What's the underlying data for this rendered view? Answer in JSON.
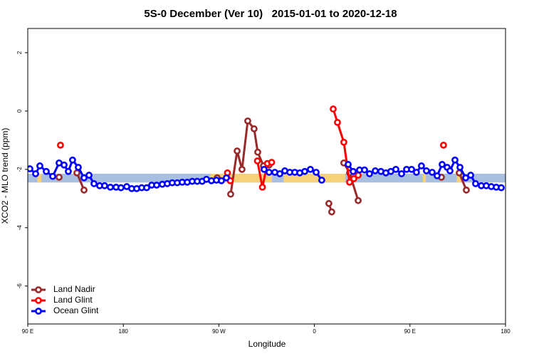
{
  "chart_data": {
    "type": "line",
    "title": "5S-0 December (Ver 10)   2015-01-01 to 2020-12-18",
    "xlabel": "Longitude",
    "ylabel": "XCO2 - MLO trend (ppm)",
    "xlim": [
      90,
      540
    ],
    "ylim": [
      -7.3,
      2.83
    ],
    "xticks": [
      {
        "value": 90,
        "label": "90 E"
      },
      {
        "value": 180,
        "label": "180"
      },
      {
        "value": 270,
        "label": "90 W"
      },
      {
        "value": 360,
        "label": "0"
      },
      {
        "value": 450,
        "label": "90 E"
      },
      {
        "value": 540,
        "label": "180"
      }
    ],
    "yticks": [
      2,
      0,
      -2,
      -4,
      -6
    ],
    "legend": "bottom-left",
    "reference_band": {
      "lower": -2.45,
      "upper": -2.15,
      "color": "#a8bfdf"
    },
    "highlight_xranges": {
      "color": "#f5d27a",
      "ranges": [
        [
          99,
          103
        ],
        [
          262,
          320
        ],
        [
          331,
          389
        ],
        [
          462,
          465
        ],
        [
          494,
          499
        ]
      ]
    },
    "series": [
      {
        "name": "Land Nadir",
        "color": "#9a2a2a",
        "x": [
          119.5,
          null,
          136.3,
          143.0,
          null,
          268.4,
          null,
          281.1,
          287.2,
          291.8,
          297.2,
          303.2,
          306.6,
          312.0,
          317.3,
          null,
          373.6,
          376.3,
          null,
          387.7,
          393.1,
          401.2,
          null,
          479.6,
          null,
          496.4,
          503.1
        ],
        "values": [
          -2.27,
          null,
          -2.12,
          -2.71,
          null,
          -2.29,
          null,
          -2.85,
          -1.37,
          -2.0,
          -0.34,
          -0.61,
          -1.41,
          -1.88,
          -1.85,
          null,
          -3.17,
          -3.46,
          null,
          -1.78,
          -2.12,
          -3.07,
          null,
          -2.27,
          null,
          -2.12,
          -2.71
        ]
      },
      {
        "name": "Land Glint",
        "color": "#ff0000",
        "x": [
          120.8,
          null,
          278.1,
          280.8,
          null,
          306.3,
          311.0,
          315.7,
          319.7,
          null,
          377.7,
          381.7,
          387.7,
          393.1,
          397.1,
          401.2,
          null,
          481.6
        ],
        "values": [
          -1.17,
          null,
          -2.12,
          -2.39,
          null,
          -1.71,
          -2.61,
          -1.8,
          -1.76,
          null,
          0.07,
          -0.39,
          -1.07,
          -2.44,
          -2.32,
          -2.2,
          null,
          -1.17
        ]
      },
      {
        "name": "Ocean Glint",
        "color": "#0000ff",
        "x": [
          92.0,
          97.4,
          101.4,
          107.4,
          113.5,
          119.5,
          124.2,
          128.2,
          132.2,
          137.6,
          143.0,
          147.7,
          152.4,
          157.7,
          162.4,
          167.8,
          173.2,
          177.8,
          183.2,
          187.9,
          192.6,
          197.3,
          202.0,
          206.7,
          211.4,
          216.7,
          221.4,
          226.1,
          230.8,
          235.5,
          240.2,
          244.9,
          249.6,
          254.3,
          258.3,
          263.0,
          267.7,
          272.4,
          277.1,
          null,
          312.6,
          317.3,
          322.7,
          327.4,
          332.1,
          336.8,
          341.5,
          346.2,
          350.9,
          356.2,
          361.6,
          366.9,
          null,
          391.8,
          396.5,
          402.5,
          407.2,
          411.9,
          417.3,
          422.6,
          427.3,
          432.0,
          436.7,
          442.1,
          446.8,
          451.5,
          456.1,
          460.8,
          465.5,
          470.9,
          475.6,
          480.3,
          485.0,
          487.7,
          492.4,
          497.1,
          502.5,
          507.2,
          511.8,
          517.2,
          521.9,
          526.6,
          531.3,
          536.0
        ],
        "values": [
          -1.98,
          -2.15,
          -1.88,
          -2.07,
          -2.24,
          -1.78,
          -1.85,
          -2.07,
          -1.68,
          -1.93,
          -2.29,
          -2.2,
          -2.49,
          -2.56,
          -2.56,
          -2.61,
          -2.61,
          -2.63,
          -2.59,
          -2.66,
          -2.66,
          -2.63,
          -2.63,
          -2.54,
          -2.54,
          -2.51,
          -2.49,
          -2.46,
          -2.46,
          -2.44,
          -2.44,
          -2.41,
          -2.41,
          -2.41,
          -2.34,
          -2.39,
          -2.37,
          -2.39,
          -2.29,
          null,
          -2.0,
          -2.1,
          -2.1,
          -2.15,
          -2.05,
          -2.1,
          -2.1,
          -2.12,
          -2.07,
          -2.0,
          -2.1,
          -2.37,
          null,
          -1.83,
          -2.07,
          -2.02,
          -2.02,
          -2.15,
          -2.05,
          -2.07,
          -2.12,
          -2.07,
          -2.0,
          -2.15,
          -2.0,
          -2.0,
          -2.1,
          -1.88,
          -2.05,
          -2.1,
          -2.22,
          -1.83,
          -1.93,
          -2.05,
          -1.68,
          -1.93,
          -2.29,
          -2.2,
          -2.49,
          -2.56,
          -2.56,
          -2.59,
          -2.61,
          -2.63
        ]
      }
    ]
  }
}
